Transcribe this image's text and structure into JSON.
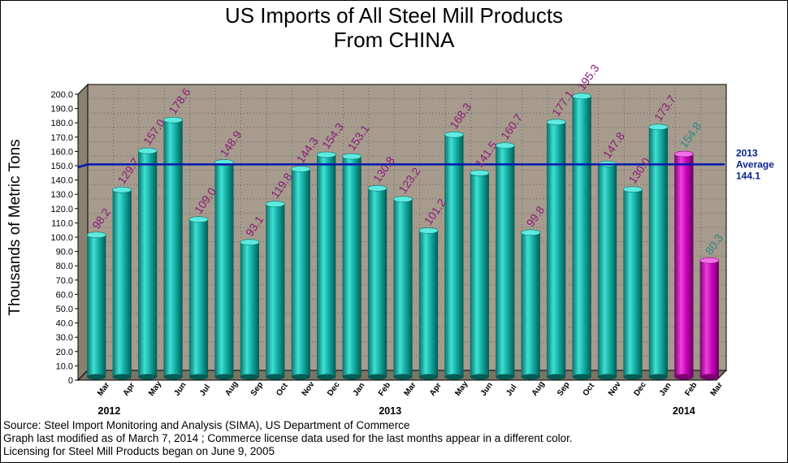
{
  "chart_data": {
    "type": "bar",
    "title": "US Imports of All Steel Mill Products",
    "subtitle": "From CHINA",
    "ylabel": "Thousands of Metric Tons",
    "ylim": [
      0,
      200
    ],
    "yticks": [
      "0",
      "10.0",
      "20.0",
      "30.0",
      "40.0",
      "50.0",
      "60.0",
      "70.0",
      "80.0",
      "90.0",
      "100.0",
      "110.0",
      "120.0",
      "130.0",
      "140.0",
      "150.0",
      "160.0",
      "170.0",
      "180.0",
      "190.0",
      "200.0"
    ],
    "categories": [
      "Mar",
      "Apr",
      "May",
      "Jun",
      "Jul",
      "Aug",
      "Sep",
      "Oct",
      "Nov",
      "Dec",
      "Jan",
      "Feb",
      "Mar",
      "Apr",
      "May",
      "Jun",
      "Jul",
      "Aug",
      "Sep",
      "Oct",
      "Nov",
      "Dec",
      "Jan",
      "Feb",
      "Mar"
    ],
    "years": [
      {
        "label": "2012",
        "category_index": 0.5
      },
      {
        "label": "2013",
        "category_index": 11.5
      },
      {
        "label": "2014",
        "category_index": 23.0
      }
    ],
    "values": [
      98.2,
      129.7,
      157.0,
      178.6,
      109.0,
      148.9,
      93.1,
      119.8,
      144.3,
      154.3,
      153.1,
      130.8,
      123.2,
      101.2,
      168.3,
      141.5,
      160.7,
      99.8,
      177.1,
      195.3,
      147.8,
      130.0,
      173.7,
      154.8,
      80.3
    ],
    "value_labels": [
      "98.2",
      "129.7",
      "157.0",
      "178.6",
      "109.0",
      "148.9",
      "93.1",
      "119.8",
      "144.3",
      "154.3",
      "153.1",
      "130.8",
      "123.2",
      "101.2",
      "168.3",
      "141.5",
      "160.7",
      "99.8",
      "177.1",
      "195.3",
      "147.8",
      "130.0",
      "173.7",
      "154.8",
      "80.3"
    ],
    "license_data_from_index": 23,
    "grid": true,
    "reference_line": {
      "value": 144.1,
      "label_lines": [
        "2013",
        "Average",
        "144.1"
      ]
    }
  },
  "colors": {
    "plot_background": "#a69b8c",
    "bar": "#11a89e",
    "bar_license": "#c400b4",
    "value_label": "#8b1a7a",
    "value_label_license": "#2a8a82",
    "average_line": "#0018b0",
    "average_text": "#0a1f8a"
  },
  "footer": {
    "source": "Source: Steel Import Monitoring and Analysis (SIMA), US Department of Commerce",
    "modified": "Graph last modified as of March 7, 2014     ; Commerce license data used for the last months appear in a different color.",
    "licensing": "Licensing for Steel Mill Products began on June 9, 2005"
  }
}
